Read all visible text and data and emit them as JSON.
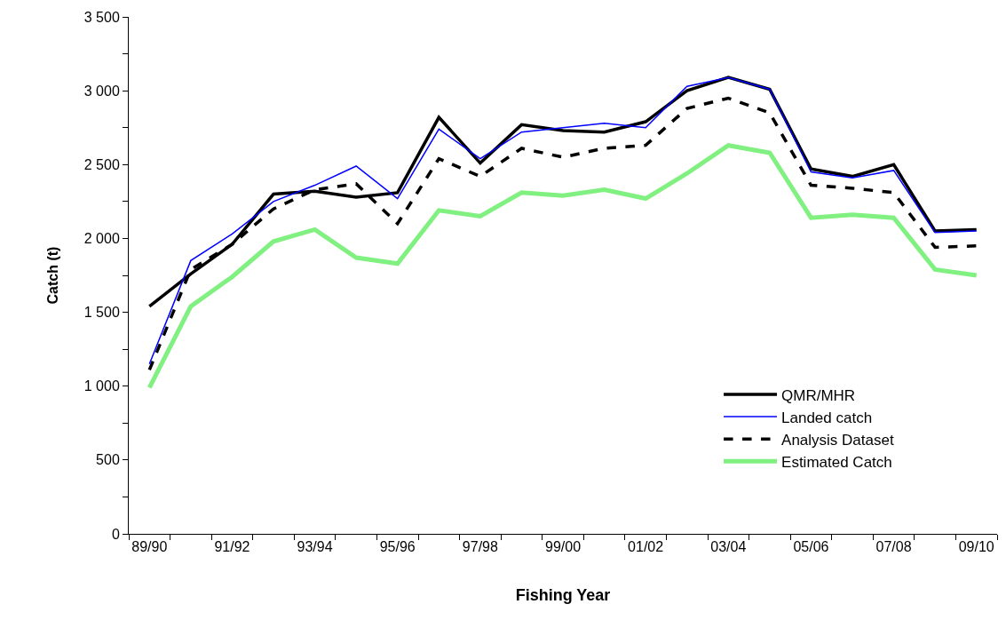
{
  "chart_data": {
    "type": "line",
    "xlabel": "Fishing Year",
    "ylabel": "Catch (t)",
    "categories": [
      "89/90",
      null,
      "91/92",
      null,
      "93/94",
      null,
      "95/96",
      null,
      "97/98",
      null,
      "99/00",
      null,
      "01/02",
      null,
      "03/04",
      null,
      "05/06",
      null,
      "07/08",
      null,
      "09/10"
    ],
    "series": [
      {
        "name": "QMR/MHR",
        "color": "#000000",
        "line_style": "solid",
        "values": [
          1540,
          1760,
          1960,
          2300,
          2320,
          2280,
          2310,
          2820,
          2510,
          2770,
          2730,
          2720,
          2790,
          3000,
          3090,
          3010,
          2470,
          2420,
          2500,
          2050,
          2060
        ]
      },
      {
        "name": "Landed catch",
        "color": "#0000ff",
        "line_style": "solid",
        "values": [
          1150,
          1850,
          2030,
          2250,
          2360,
          2490,
          2270,
          2740,
          2540,
          2720,
          2750,
          2780,
          2750,
          3030,
          3090,
          3010,
          2450,
          2410,
          2460,
          2040,
          2050
        ]
      },
      {
        "name": "Analysis Dataset",
        "color": "#000000",
        "line_style": "dashed",
        "values": [
          1110,
          1790,
          1960,
          2200,
          2330,
          2370,
          2100,
          2540,
          2420,
          2610,
          2550,
          2610,
          2630,
          2880,
          2950,
          2850,
          2360,
          2340,
          2310,
          1940,
          1950
        ]
      },
      {
        "name": "Estimated Catch",
        "color": "#80f080",
        "line_style": "solid",
        "values": [
          990,
          1540,
          1740,
          1980,
          2060,
          1870,
          1830,
          2190,
          2150,
          2310,
          2290,
          2330,
          2270,
          2440,
          2630,
          2580,
          2140,
          2160,
          2140,
          1790,
          1750
        ]
      }
    ],
    "ylim": [
      0,
      3500
    ],
    "yticks": [
      0,
      {
        "value": 250,
        "label": null
      },
      {
        "value": 500,
        "label": "500"
      },
      {
        "value": 750,
        "label": null
      },
      {
        "value": 1000,
        "label": "1 000"
      },
      {
        "value": 1250,
        "label": null
      },
      {
        "value": 1500,
        "label": "1 500"
      },
      {
        "value": 1750,
        "label": null
      },
      {
        "value": 2000,
        "label": "2 000"
      },
      {
        "value": 2250,
        "label": null
      },
      {
        "value": 2500,
        "label": "2 500"
      },
      {
        "value": 2750,
        "label": null
      },
      {
        "value": 3000,
        "label": "3 000"
      },
      {
        "value": 3250,
        "label": null
      },
      {
        "value": 3500,
        "label": "3 500"
      }
    ],
    "legend": "bottom right",
    "marker": "none"
  }
}
